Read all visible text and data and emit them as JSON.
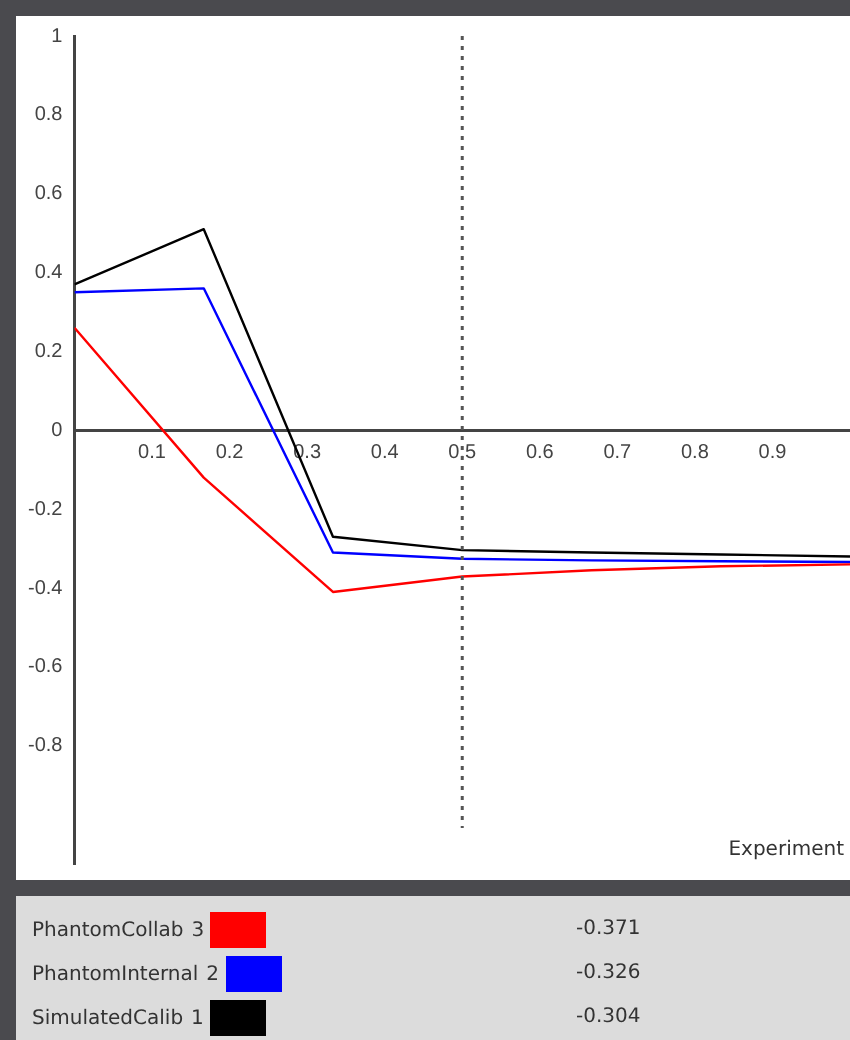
{
  "chart_data": {
    "type": "line",
    "xlabel": "Experiment",
    "x": [
      0,
      0.1667,
      0.3333,
      0.5,
      0.6667,
      0.8333,
      1
    ],
    "series": [
      {
        "name": "PhantomCollab",
        "color": "#ff0000",
        "values": [
          0.26,
          -0.12,
          -0.41,
          -0.371,
          -0.355,
          -0.345,
          -0.34
        ]
      },
      {
        "name": "PhantomInternal",
        "color": "#0000ff",
        "values": [
          0.35,
          0.36,
          -0.31,
          -0.326,
          -0.33,
          -0.332,
          -0.334
        ]
      },
      {
        "name": "SimulatedCalib",
        "color": "#000000",
        "values": [
          0.37,
          0.51,
          -0.27,
          -0.304,
          -0.31,
          -0.315,
          -0.32
        ]
      }
    ],
    "xlim": [
      0,
      1
    ],
    "ylim": [
      -1.1,
      1
    ],
    "xticks": [
      {
        "value": 0,
        "label": null
      },
      0.1,
      0.2,
      0.3,
      0.4,
      0.5,
      0.6,
      0.7,
      0.8,
      0.9
    ],
    "yticks": [
      -0.8,
      -0.6,
      -0.4,
      -0.2,
      0,
      0.2,
      0.4,
      0.6,
      0.8,
      1
    ],
    "ref_lines": [
      {
        "axis": "x",
        "value": 0.5,
        "color": "#555555",
        "line_style": "dotted"
      }
    ],
    "annotations": [
      "3",
      "2",
      "1",
      "-0.371",
      "-0.326",
      "-0.304"
    ],
    "grid": false,
    "legend": "bottom",
    "marker": "none",
    "line_style": "solid"
  }
}
